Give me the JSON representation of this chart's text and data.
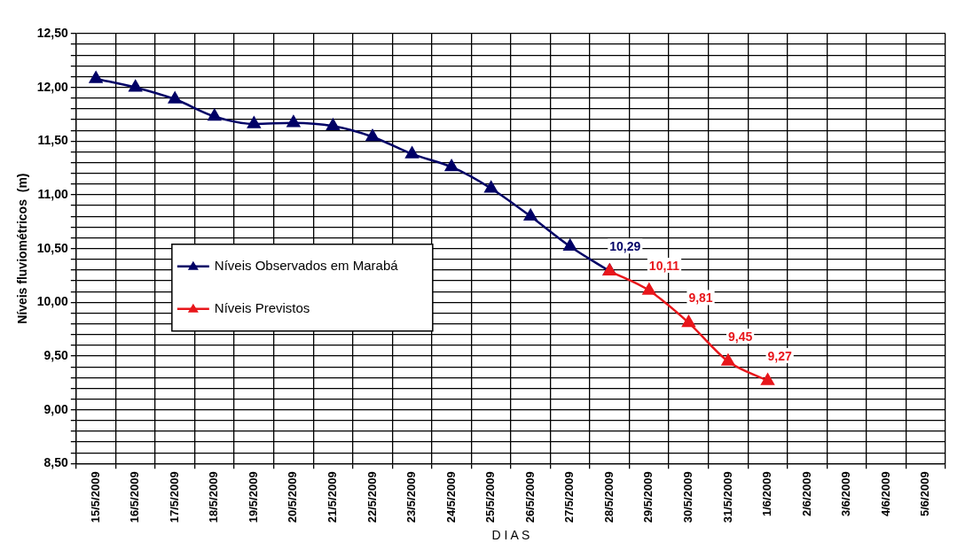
{
  "chart_data": {
    "type": "line",
    "xlabel": "D I A S",
    "ylabel": "Níveis fluviométricos  (m)",
    "categories": [
      "15/5/2009",
      "16/5/2009",
      "17/5/2009",
      "18/5/2009",
      "19/5/2009",
      "20/5/2009",
      "21/5/2009",
      "22/5/2009",
      "23/5/2009",
      "24/5/2009",
      "25/5/2009",
      "26/5/2009",
      "27/5/2009",
      "28/5/2009",
      "29/5/2009",
      "30/5/2009",
      "31/5/2009",
      "1/6/2009",
      "2/6/2009",
      "3/6/2009",
      "4/6/2009",
      "5/6/2009"
    ],
    "series": [
      {
        "name": "Níveis Observados em Marabá",
        "color": "#000066",
        "values": [
          12.08,
          12.0,
          11.89,
          11.73,
          11.66,
          11.67,
          11.64,
          11.54,
          11.38,
          11.26,
          11.06,
          10.8,
          10.52,
          10.29,
          null,
          null,
          null,
          null,
          null,
          null,
          null,
          null
        ],
        "value_labels": [
          null,
          null,
          null,
          null,
          null,
          null,
          null,
          null,
          null,
          null,
          null,
          null,
          null,
          "10,29",
          null,
          null,
          null,
          null,
          null,
          null,
          null,
          null
        ]
      },
      {
        "name": "Níveis Previstos",
        "color": "#e8161b",
        "values": [
          null,
          null,
          null,
          null,
          null,
          null,
          null,
          null,
          null,
          null,
          null,
          null,
          null,
          10.29,
          10.11,
          9.81,
          9.45,
          9.27,
          null,
          null,
          null,
          null
        ],
        "value_labels": [
          null,
          null,
          null,
          null,
          null,
          null,
          null,
          null,
          null,
          null,
          null,
          null,
          null,
          null,
          "10,11",
          "9,81",
          "9,45",
          "9,27",
          null,
          null,
          null,
          null
        ]
      }
    ],
    "ylim": [
      8.5,
      12.5
    ],
    "yticks": [
      {
        "value": 8.5,
        "label": "8,50"
      },
      {
        "value": 8.6,
        "label": null
      },
      {
        "value": 8.7,
        "label": null
      },
      {
        "value": 8.8,
        "label": null
      },
      {
        "value": 8.9,
        "label": null
      },
      {
        "value": 9.0,
        "label": "9,00"
      },
      {
        "value": 9.1,
        "label": null
      },
      {
        "value": 9.2,
        "label": null
      },
      {
        "value": 9.3,
        "label": null
      },
      {
        "value": 9.4,
        "label": null
      },
      {
        "value": 9.5,
        "label": "9,50"
      },
      {
        "value": 9.6,
        "label": null
      },
      {
        "value": 9.7,
        "label": null
      },
      {
        "value": 9.8,
        "label": null
      },
      {
        "value": 9.9,
        "label": null
      },
      {
        "value": 10.0,
        "label": "10,00"
      },
      {
        "value": 10.1,
        "label": null
      },
      {
        "value": 10.2,
        "label": null
      },
      {
        "value": 10.3,
        "label": null
      },
      {
        "value": 10.4,
        "label": null
      },
      {
        "value": 10.5,
        "label": "10,50"
      },
      {
        "value": 10.6,
        "label": null
      },
      {
        "value": 10.7,
        "label": null
      },
      {
        "value": 10.8,
        "label": null
      },
      {
        "value": 10.9,
        "label": null
      },
      {
        "value": 11.0,
        "label": "11,00"
      },
      {
        "value": 11.1,
        "label": null
      },
      {
        "value": 11.2,
        "label": null
      },
      {
        "value": 11.3,
        "label": null
      },
      {
        "value": 11.4,
        "label": null
      },
      {
        "value": 11.5,
        "label": "11,50"
      },
      {
        "value": 11.6,
        "label": null
      },
      {
        "value": 11.7,
        "label": null
      },
      {
        "value": 11.8,
        "label": null
      },
      {
        "value": 11.9,
        "label": null
      },
      {
        "value": 12.0,
        "label": "12,00"
      },
      {
        "value": 12.1,
        "label": null
      },
      {
        "value": 12.2,
        "label": null
      },
      {
        "value": 12.3,
        "label": null
      },
      {
        "value": 12.4,
        "label": null
      },
      {
        "value": 12.5,
        "label": "12,50"
      }
    ],
    "grid": true,
    "legend": "left",
    "marker": "triangle",
    "line_style": "solid"
  }
}
